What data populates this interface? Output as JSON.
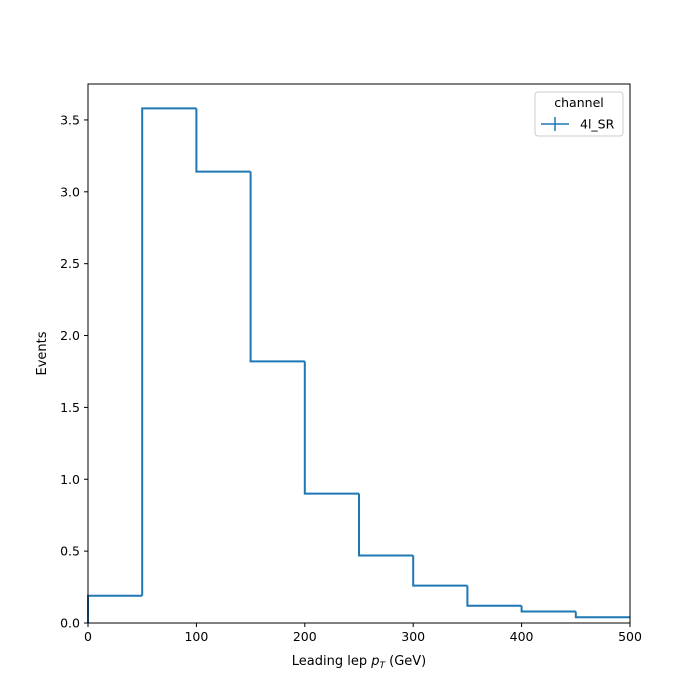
{
  "chart_data": {
    "type": "line",
    "drawstyle": "step-histogram",
    "title": "",
    "xlabel_main": "Leading lep ",
    "xlabel_var": "p",
    "xlabel_sub": "T",
    "xlabel_unit": " (GeV)",
    "ylabel": "Events",
    "xlim": [
      0,
      500
    ],
    "ylim": [
      0,
      3.75
    ],
    "xticks": [
      0,
      100,
      200,
      300,
      400,
      500
    ],
    "yticks": [
      0.0,
      0.5,
      1.0,
      1.5,
      2.0,
      2.5,
      3.0,
      3.5
    ],
    "ytick_labels": [
      "0.0",
      "0.5",
      "1.0",
      "1.5",
      "2.0",
      "2.5",
      "3.0",
      "3.5"
    ],
    "xtick_labels": [
      "0",
      "100",
      "200",
      "300",
      "400",
      "500"
    ],
    "grid": false,
    "legend": {
      "title": "channel",
      "placement": "top-right"
    },
    "bin_edges": [
      0,
      50,
      100,
      150,
      200,
      250,
      300,
      350,
      400,
      450,
      500
    ],
    "series": [
      {
        "name": "4l_SR",
        "color": "#1f77b4",
        "values": [
          0.19,
          3.58,
          3.14,
          1.82,
          0.9,
          0.47,
          0.26,
          0.12,
          0.08,
          0.04
        ]
      }
    ]
  }
}
